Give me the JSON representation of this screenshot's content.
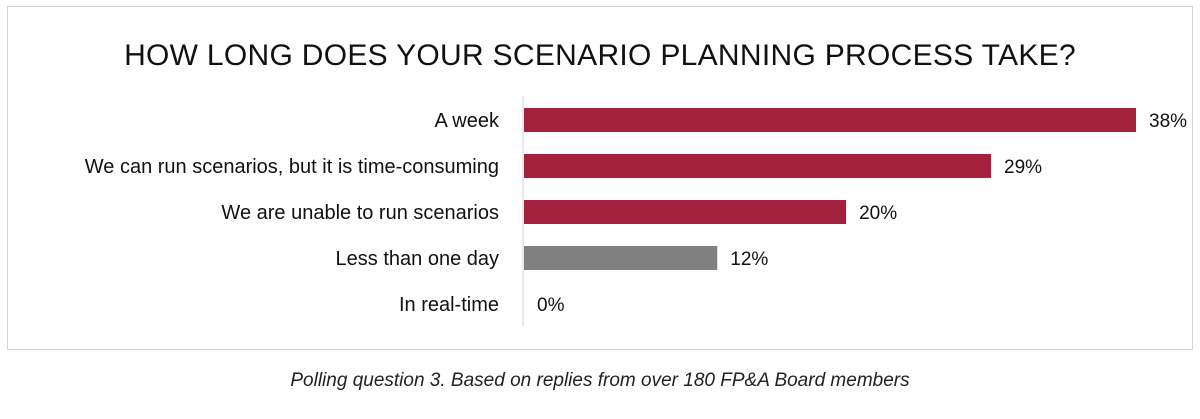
{
  "chart_data": {
    "type": "bar",
    "orientation": "horizontal",
    "title": "HOW LONG DOES YOUR SCENARIO PLANNING PROCESS TAKE?",
    "xlabel": "",
    "ylabel": "",
    "xlim": [
      0,
      40
    ],
    "grid": false,
    "categories": [
      "A week",
      "We can run scenarios, but it is time-consuming",
      "We are unable to run scenarios",
      "Less than one day",
      "In real-time"
    ],
    "values": [
      38,
      29,
      20,
      12,
      0
    ],
    "value_labels": [
      "38%",
      "29%",
      "20%",
      "12%",
      "0%"
    ],
    "bar_colors": [
      "#a4213d",
      "#a4213d",
      "#a4213d",
      "#808080",
      "#808080"
    ]
  },
  "caption": "Polling question 3. Based on replies from over 180 FP&A Board members"
}
